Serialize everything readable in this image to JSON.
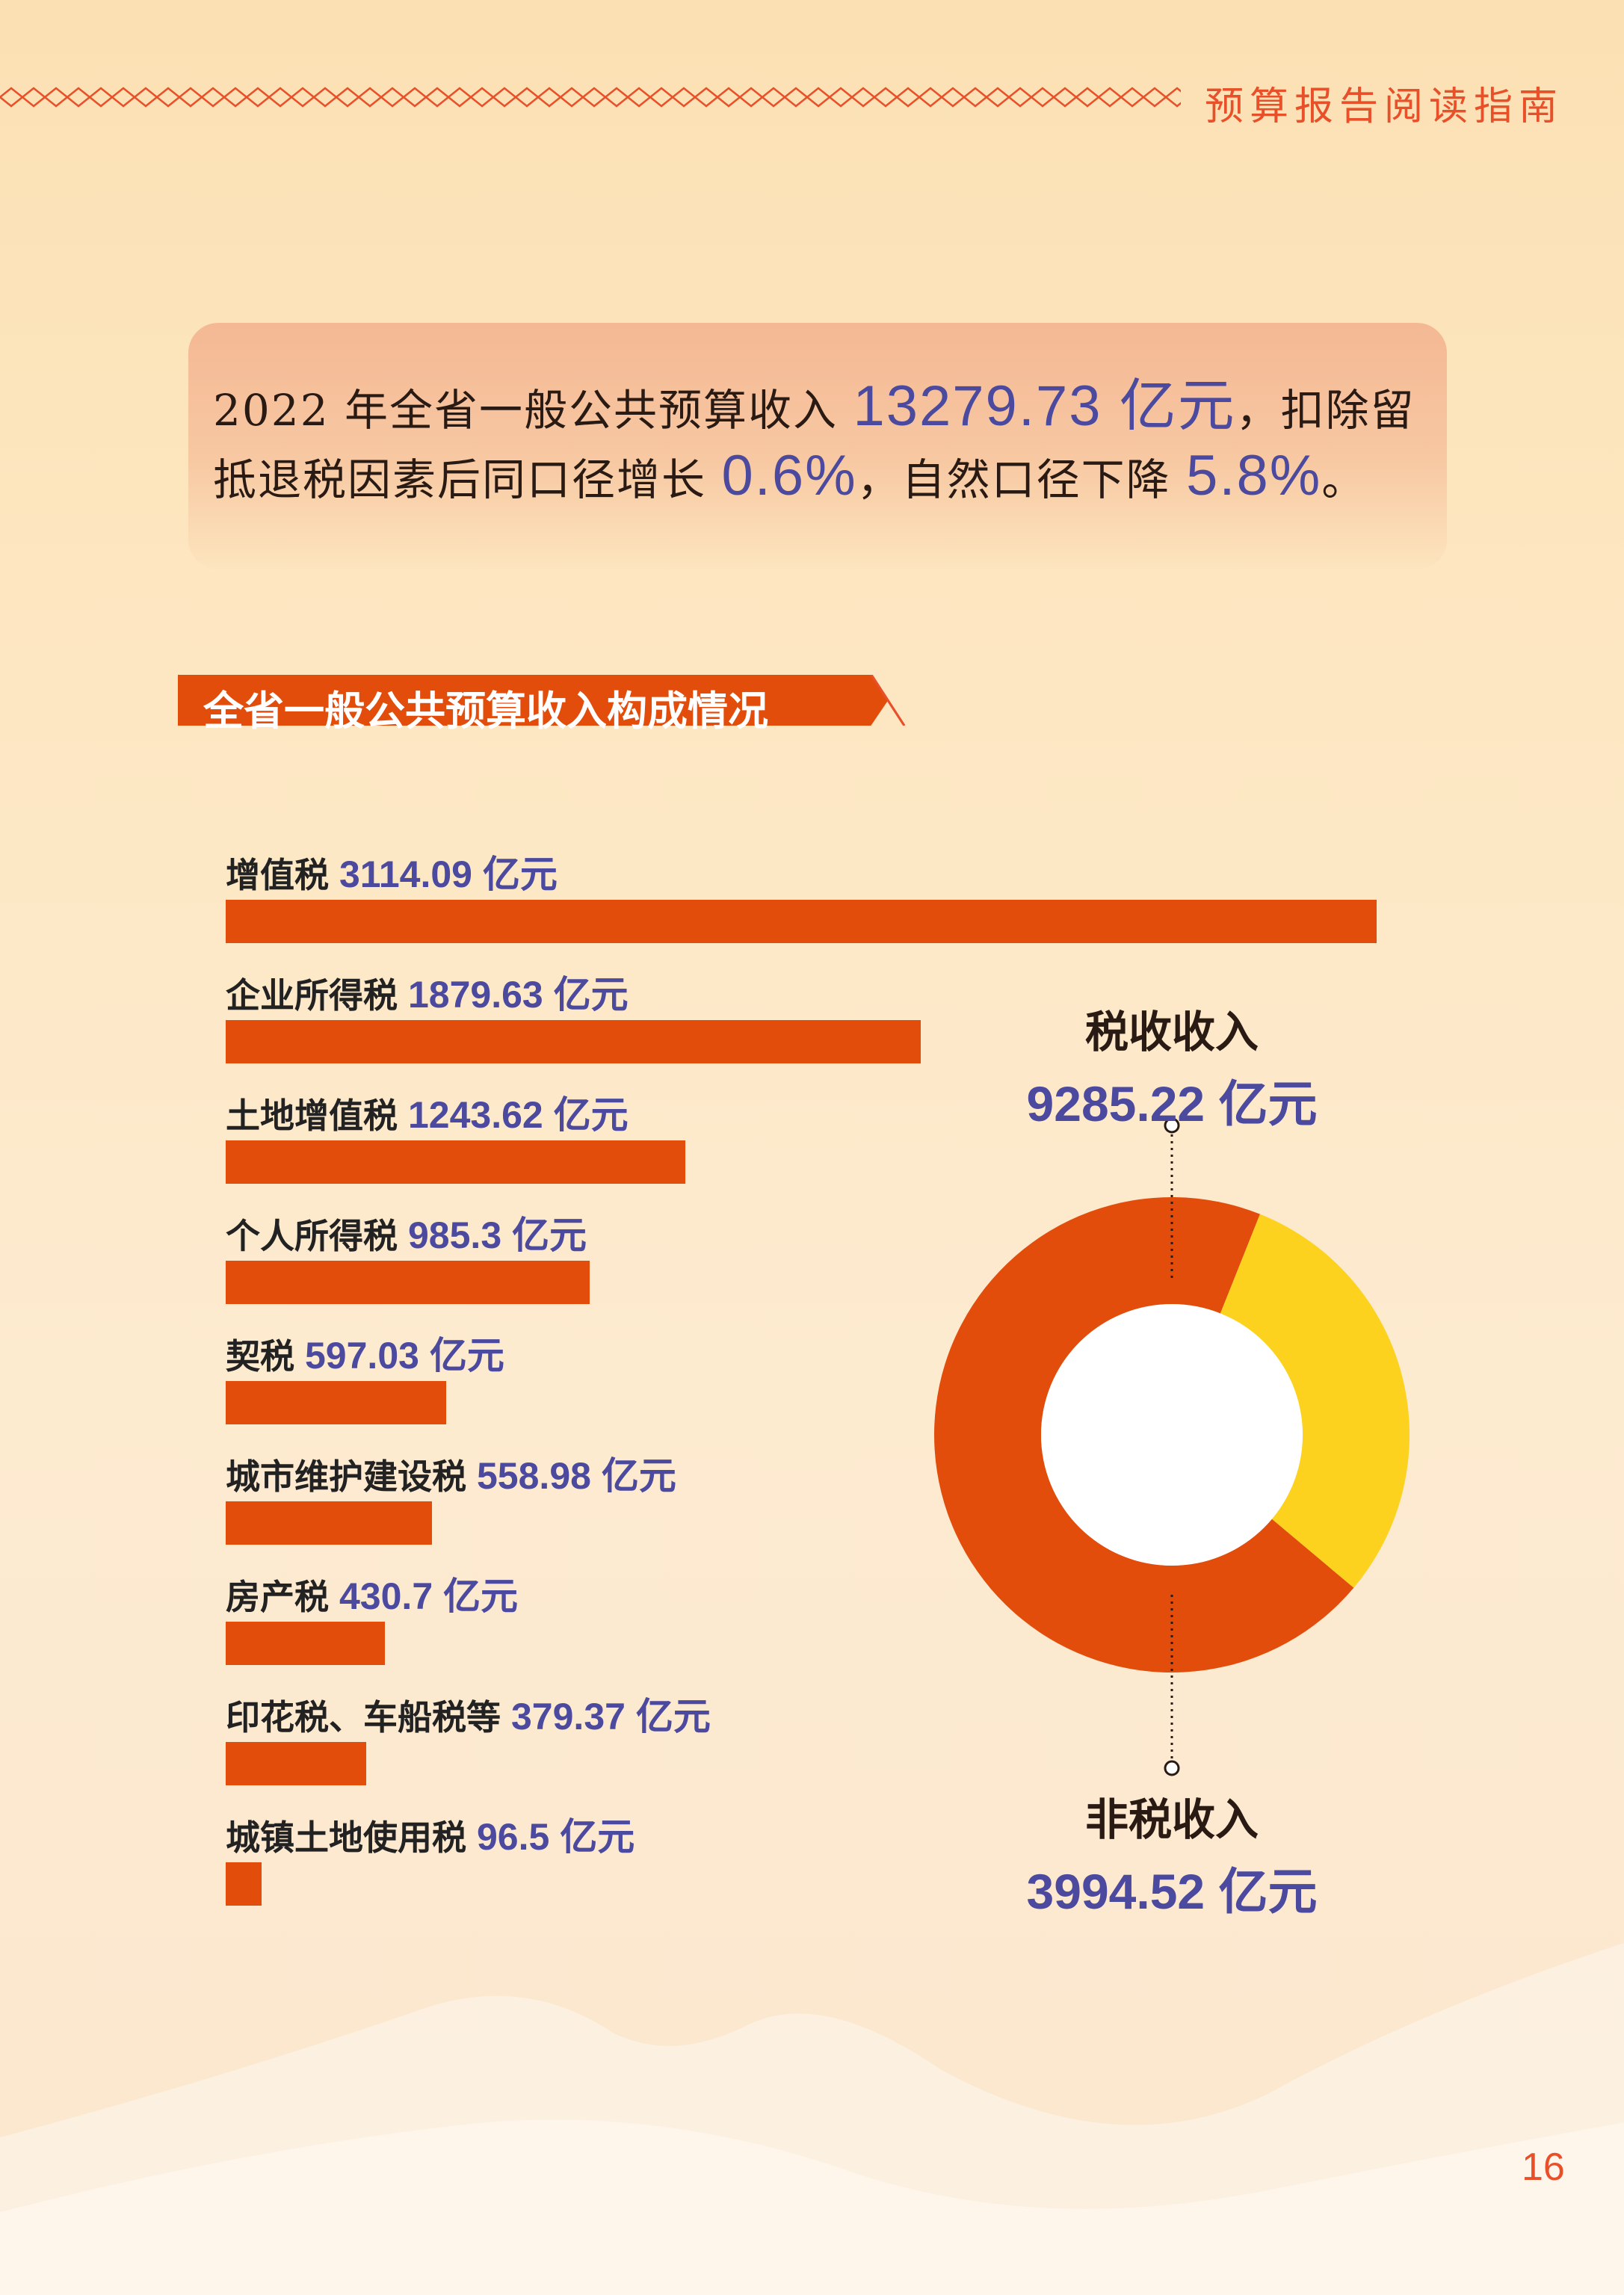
{
  "header": {
    "title": "预算报告阅读指南"
  },
  "summary": {
    "part1": "2022 年全省一般公共预算收入 ",
    "total": "13279.73 亿元",
    "part2": "，扣除留抵退税因素后同口径增长 ",
    "growth": "0.6%",
    "part3": "，自然口径下降 ",
    "decline": "5.8%",
    "part4": "。"
  },
  "section_title": "全省一般公共预算收入构成情况",
  "chart_data": [
    {
      "type": "bar",
      "orientation": "horizontal",
      "categories": [
        "增值税",
        "企业所得税",
        "土地增值税",
        "个人所得税",
        "契税",
        "城市维护建设税",
        "房产税",
        "印花税、车船税等",
        "城镇土地使用税"
      ],
      "values": [
        3114.09,
        1879.63,
        1243.62,
        985.3,
        597.03,
        558.98,
        430.7,
        379.37,
        96.5
      ],
      "value_labels": [
        "3114.09 亿元",
        "1879.63 亿元",
        "1243.62 亿元",
        "985.3 亿元",
        "597.03 亿元",
        "558.98 亿元",
        "430.7 亿元",
        "379.37 亿元",
        "96.5 亿元"
      ],
      "bar_color": "#e24d0c"
    },
    {
      "type": "pie",
      "style": "donut",
      "categories": [
        "税收收入",
        "非税收入"
      ],
      "values": [
        9285.22,
        3994.52
      ],
      "value_labels": [
        "9285.22 亿元",
        "3994.52 亿元"
      ],
      "colors": [
        "#e24d0c",
        "#fcd21f"
      ]
    }
  ],
  "page_number": "16"
}
